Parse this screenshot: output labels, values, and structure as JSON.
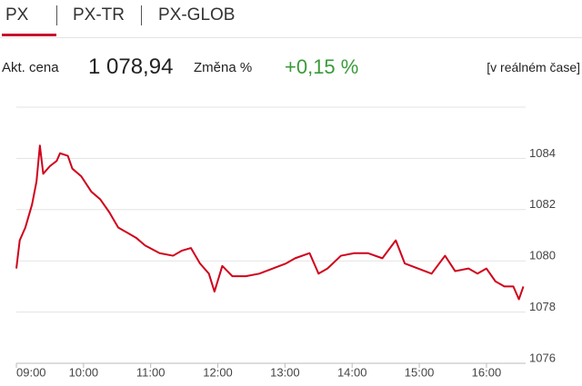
{
  "tabs": [
    "PX",
    "PX-TR",
    "PX-GLOB"
  ],
  "quote": {
    "price_label": "Akt. cena",
    "price": "1 078,94",
    "change_label": "Změna %",
    "change": "+0,15 %",
    "mode": "[v reálném čase]"
  },
  "chart_data": {
    "type": "line",
    "x": [
      "09:00",
      "09:03",
      "09:08",
      "09:14",
      "09:18",
      "09:21",
      "09:24",
      "09:30",
      "09:36",
      "09:39",
      "09:46",
      "09:50",
      "09:58",
      "10:07",
      "10:15",
      "10:23",
      "10:31",
      "10:39",
      "10:47",
      "10:55",
      "11:08",
      "11:20",
      "11:28",
      "11:36",
      "11:44",
      "11:52",
      "11:57",
      "12:04",
      "12:13",
      "12:25",
      "12:37",
      "12:49",
      "13:01",
      "13:09",
      "13:22",
      "13:30",
      "13:38",
      "13:50",
      "14:02",
      "14:14",
      "14:27",
      "14:39",
      "14:47",
      "14:59",
      "15:11",
      "15:23",
      "15:32",
      "15:44",
      "15:52",
      "16:00",
      "16:08",
      "16:16",
      "16:24",
      "16:29",
      "16:33"
    ],
    "series": [
      {
        "color": "#d0021b",
        "values": [
          1079.7,
          1080.8,
          1081.3,
          1082.2,
          1083.1,
          1084.5,
          1083.4,
          1083.7,
          1083.9,
          1084.2,
          1084.1,
          1083.6,
          1083.3,
          1082.7,
          1082.4,
          1081.9,
          1081.3,
          1081.1,
          1080.9,
          1080.6,
          1080.3,
          1080.2,
          1080.4,
          1080.5,
          1079.9,
          1079.5,
          1078.8,
          1079.8,
          1079.4,
          1079.4,
          1079.5,
          1079.7,
          1079.9,
          1080.1,
          1080.3,
          1079.5,
          1079.7,
          1080.2,
          1080.3,
          1080.3,
          1080.1,
          1080.8,
          1079.9,
          1079.7,
          1079.5,
          1080.2,
          1079.6,
          1079.7,
          1079.5,
          1079.7,
          1079.2,
          1079.0,
          1079.0,
          1078.5,
          1079.0
        ]
      }
    ],
    "xlim": [
      "09:00",
      "16:35"
    ],
    "xticks": [
      "09:00",
      "10:00",
      "11:00",
      "12:00",
      "13:00",
      "14:00",
      "15:00",
      "16:00"
    ],
    "ylim": [
      1076,
      1086
    ],
    "yticks": [
      1076,
      1078,
      1080,
      1082,
      1084
    ],
    "grid": true
  }
}
